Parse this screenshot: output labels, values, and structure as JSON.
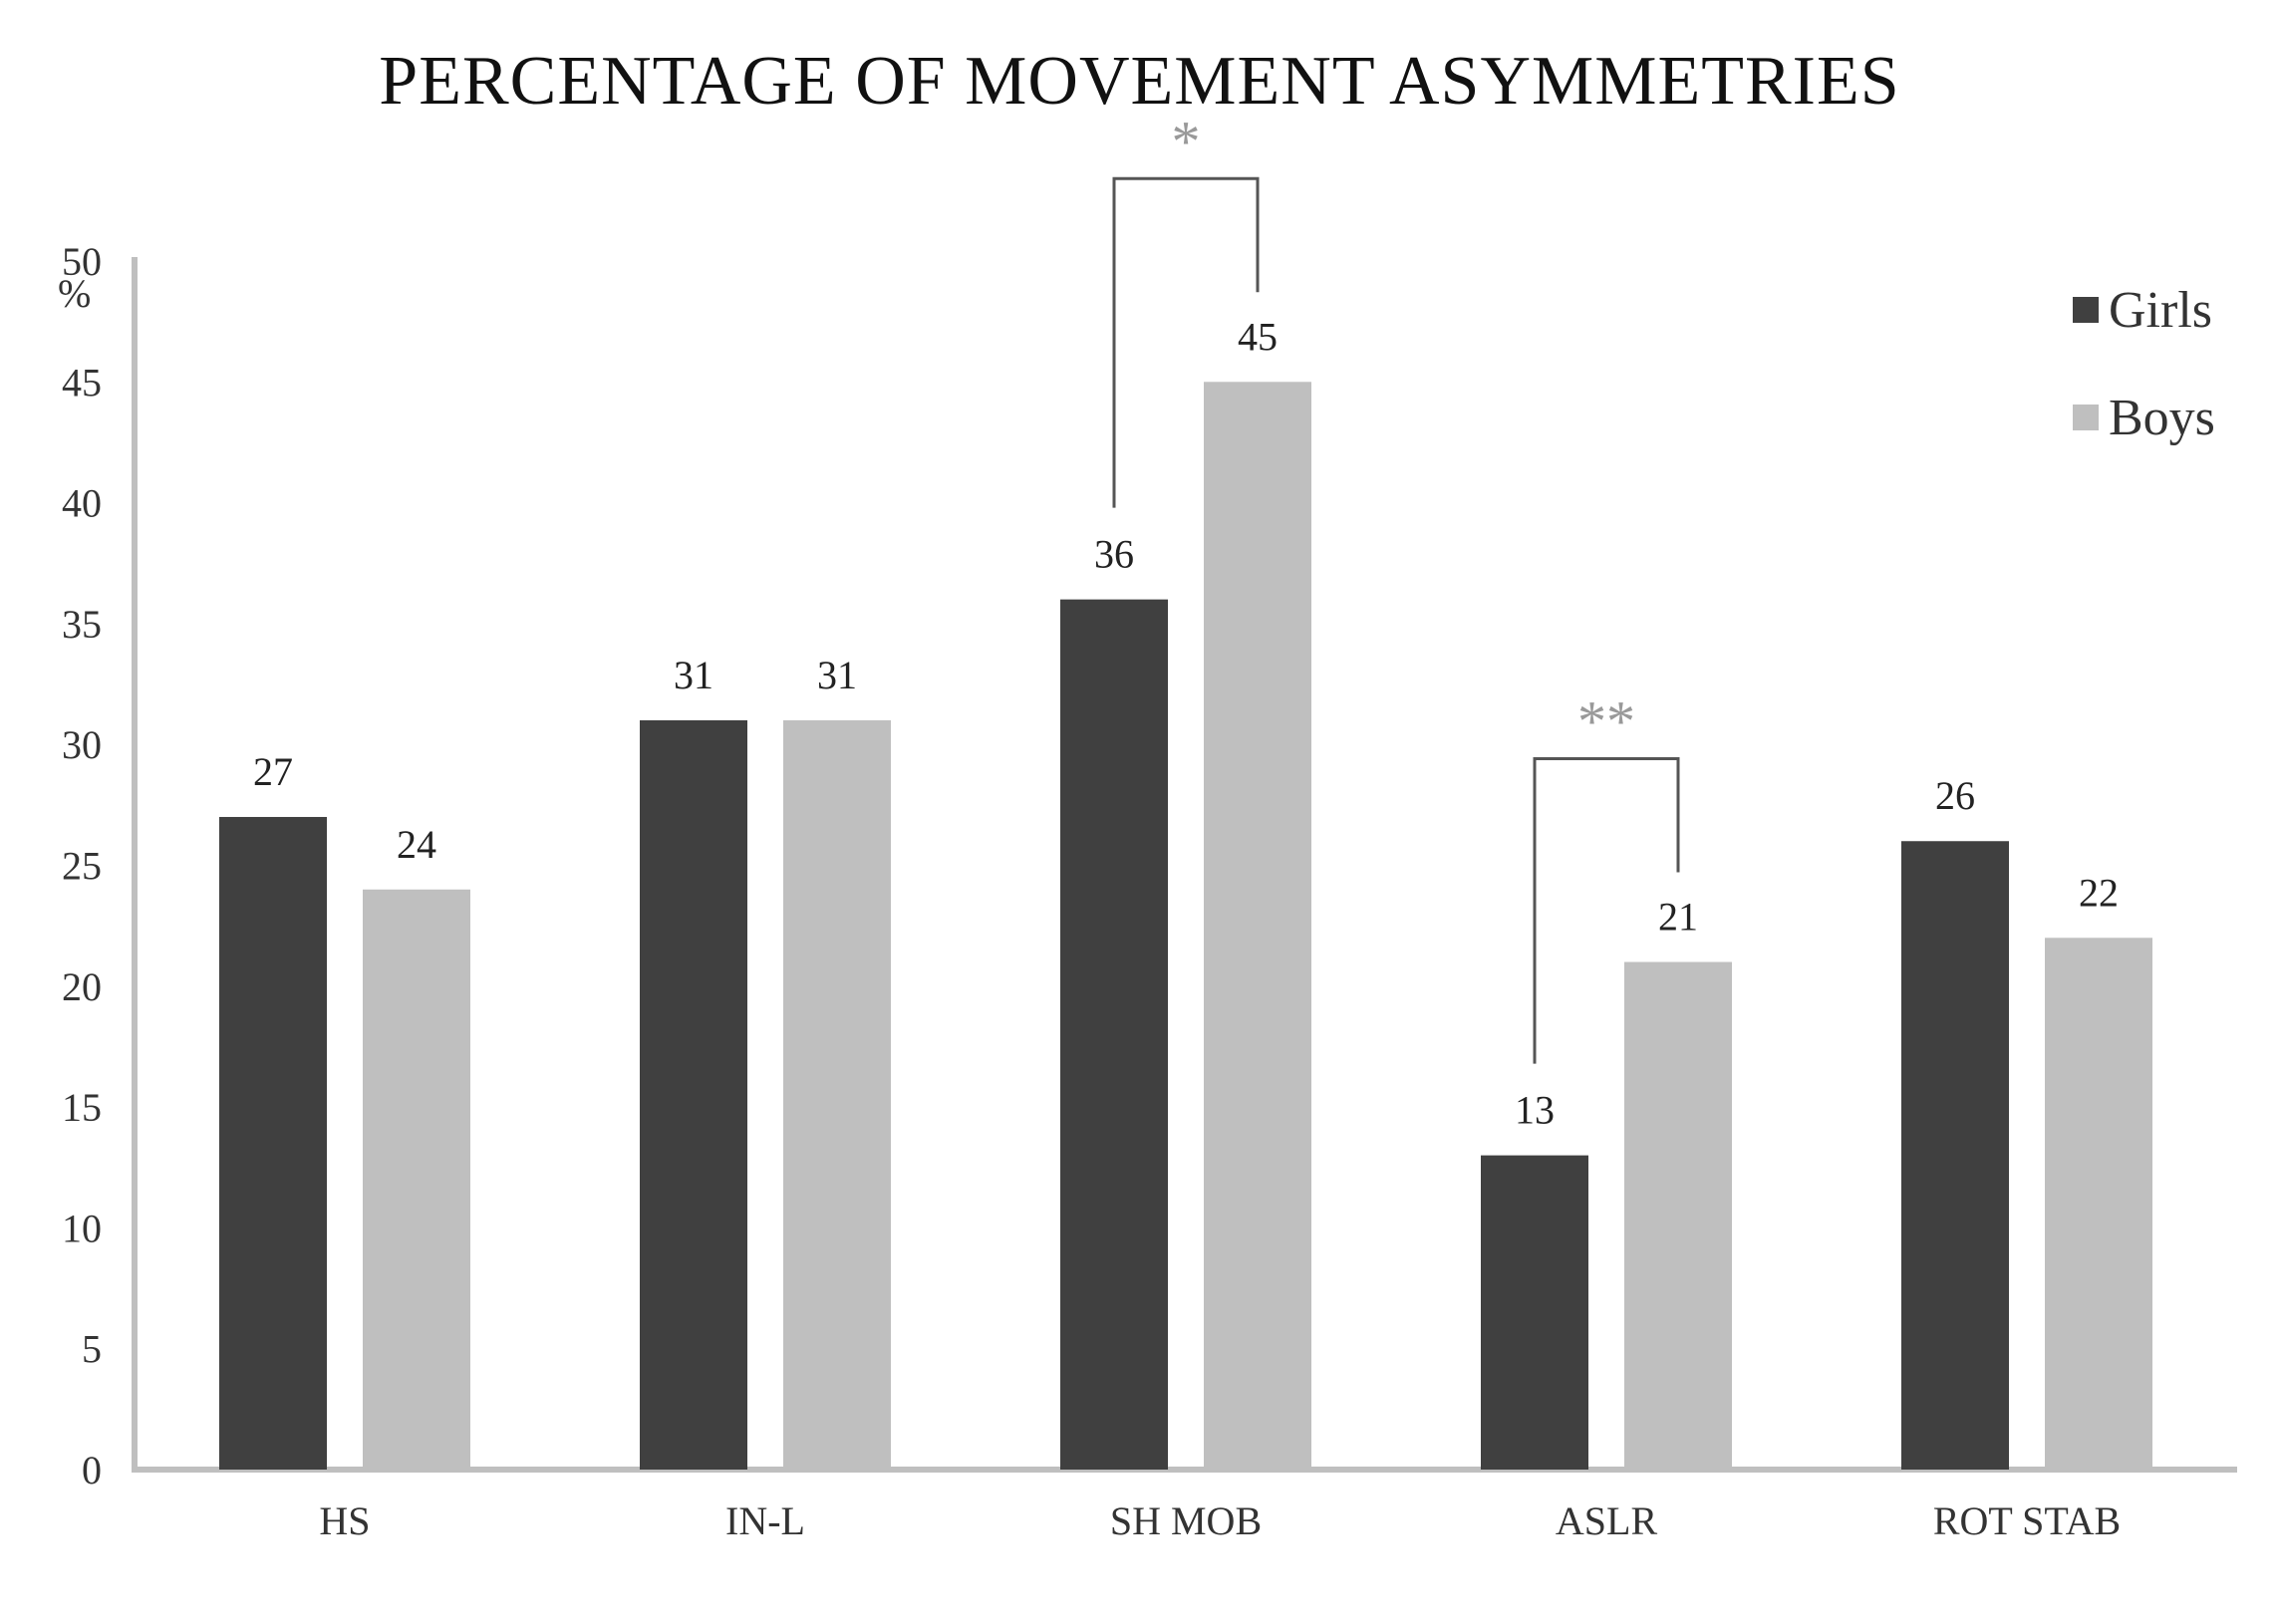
{
  "chart_data": {
    "type": "bar",
    "title": "PERCENTAGE OF MOVEMENT ASYMMETRIES",
    "ylabel": "%",
    "xlabel": "",
    "ylim": [
      0,
      50
    ],
    "yticks": [
      0,
      5,
      10,
      15,
      20,
      25,
      30,
      35,
      40,
      45,
      50
    ],
    "categories": [
      "HS",
      "IN-L",
      "SH MOB",
      "ASLR",
      "ROT STAB"
    ],
    "series": [
      {
        "name": "Girls",
        "values": [
          27,
          31,
          36,
          13,
          26
        ],
        "color": "#404040"
      },
      {
        "name": "Boys",
        "values": [
          24,
          31,
          45,
          21,
          22
        ],
        "color": "#bfbfbf"
      }
    ],
    "legend_position": "top-right",
    "grid": false,
    "annotations": [
      {
        "category": "SH MOB",
        "text": "*"
      },
      {
        "category": "ASLR",
        "text": "**"
      }
    ]
  }
}
